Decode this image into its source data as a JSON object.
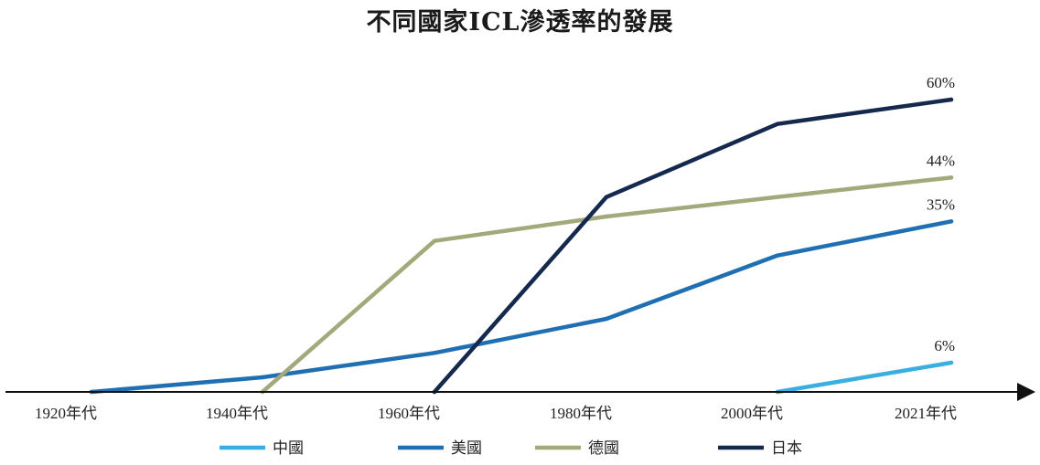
{
  "chart_data": {
    "type": "line",
    "title": "不同國家ICL滲透率的發展",
    "xlabel": "",
    "ylabel": "",
    "categories": [
      "1920年代",
      "1940年代",
      "1960年代",
      "1980年代",
      "2000年代",
      "2021年代"
    ],
    "ylim": [
      0,
      60
    ],
    "grid": false,
    "legend_position": "bottom",
    "series": [
      {
        "name": "中國",
        "color": "#3aaee0",
        "values": [
          null,
          null,
          null,
          null,
          0,
          6
        ],
        "end_label": "6%"
      },
      {
        "name": "美國",
        "color": "#1f6fb2",
        "values": [
          0,
          3,
          8,
          15,
          28,
          35
        ],
        "end_label": "35%"
      },
      {
        "name": "德國",
        "color": "#a3a97a",
        "values": [
          null,
          0,
          31,
          36,
          40,
          44
        ],
        "end_label": "44%"
      },
      {
        "name": "日本",
        "color": "#14294d",
        "values": [
          null,
          null,
          0,
          40,
          55,
          60
        ],
        "end_label": "60%"
      }
    ]
  }
}
